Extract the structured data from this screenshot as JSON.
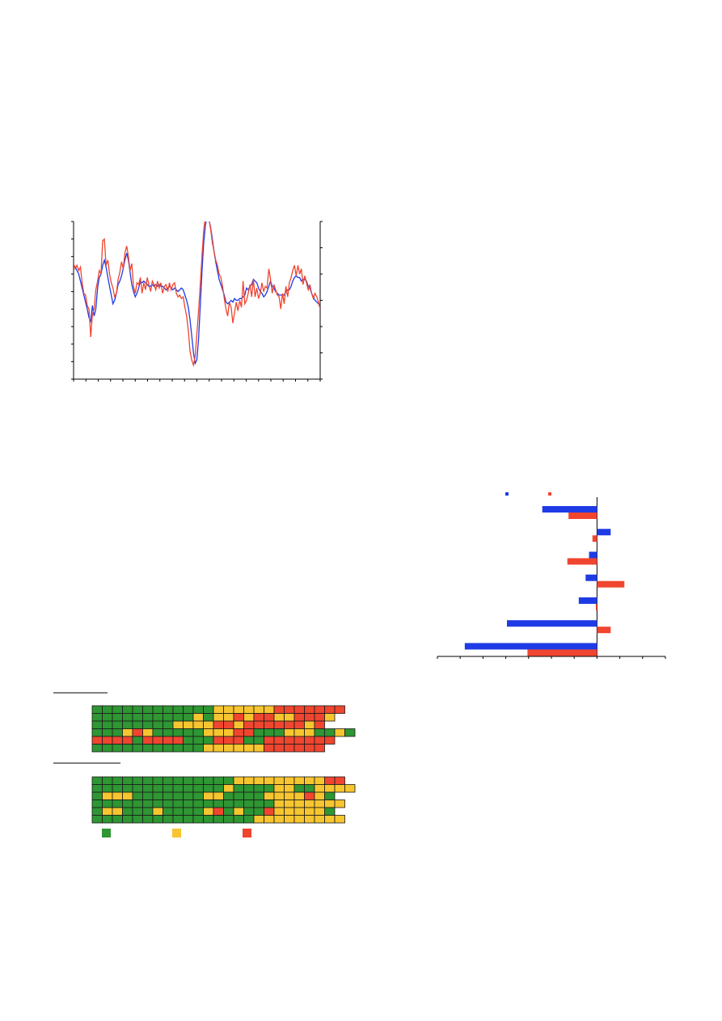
{
  "colors": {
    "blue": "#1f3be6",
    "red": "#f0452f",
    "green": "#2e9632",
    "yellow": "#f7c52f",
    "axis": "#000000"
  },
  "chart_data": [
    {
      "type": "line",
      "grid": false,
      "left_axis": {
        "ylim": [
          0,
          9
        ],
        "ticks": [
          0,
          1,
          2,
          3,
          4,
          5,
          6,
          7,
          8,
          9
        ]
      },
      "right_axis": {
        "ylim": [
          0,
          6
        ],
        "ticks": [
          0,
          1,
          2,
          3,
          4,
          5,
          6
        ]
      },
      "x_ticks": 20,
      "series": [
        {
          "axis": "left",
          "color": "blue",
          "values": [
            6.5,
            6.4,
            6.2,
            6.0,
            5.6,
            5.2,
            4.8,
            4.4,
            4.0,
            3.5,
            3.3,
            4.2,
            3.6,
            4.0,
            5.2,
            5.8,
            6.0,
            6.5,
            6.8,
            6.4,
            5.8,
            5.3,
            4.8,
            4.3,
            4.5,
            4.9,
            5.4,
            5.6,
            5.9,
            6.3,
            6.8,
            7.2,
            6.8,
            6.1,
            5.4,
            5.0,
            4.7,
            4.9,
            5.2,
            5.6,
            5.5,
            5.6,
            5.5,
            5.4,
            5.3,
            5.3,
            5.4,
            5.3,
            5.4,
            5.3,
            5.4,
            5.3,
            5.3,
            5.2,
            5.1,
            5.2,
            5.3,
            5.2,
            5.1,
            5.2,
            5.1,
            5.0,
            5.1,
            5.2,
            5.1,
            4.8,
            4.5,
            4.1,
            3.4,
            2.5,
            1.5,
            0.9,
            1.1,
            2.3,
            4.2,
            6.2,
            7.8,
            8.8,
            9.3,
            9.1,
            8.7,
            8.0,
            7.3,
            6.7,
            6.2,
            5.7,
            5.4,
            5.1,
            4.8,
            4.4,
            4.3,
            4.4,
            4.5,
            4.4,
            4.6,
            4.5,
            4.5,
            4.6,
            4.6,
            4.7,
            4.8,
            5.2,
            5.1,
            5.3,
            5.4,
            5.7,
            5.6,
            5.5,
            5.2,
            5.0,
            4.9,
            4.7,
            4.8,
            5.0,
            5.3,
            5.6,
            5.3,
            5.2,
            5.0,
            4.9,
            4.8,
            4.8,
            4.8,
            4.8,
            5.0,
            5.1,
            5.1,
            5.3,
            5.6,
            5.8,
            5.9,
            5.8,
            5.8,
            5.6,
            5.7,
            5.7,
            5.6,
            5.3,
            5.2,
            4.9,
            4.7,
            4.5,
            4.4,
            4.3,
            4.2
          ]
        },
        {
          "axis": "left",
          "color": "red",
          "values": [
            6.6,
            6.3,
            6.5,
            6.2,
            6.4,
            5.5,
            4.9,
            4.8,
            4.2,
            4.0,
            2.4,
            3.7,
            4.0,
            5.1,
            5.6,
            6.2,
            6.0,
            7.9,
            8.0,
            6.5,
            6.8,
            6.0,
            5.5,
            5.2,
            4.7,
            4.9,
            5.7,
            6.1,
            6.7,
            6.3,
            7.2,
            7.6,
            7.0,
            6.2,
            6.6,
            5.3,
            4.9,
            5.5,
            5.4,
            5.8,
            4.9,
            5.5,
            5.1,
            5.8,
            5.4,
            5.0,
            5.6,
            5.4,
            5.1,
            5.6,
            5.2,
            5.5,
            4.9,
            5.3,
            5.4,
            5.0,
            5.5,
            5.1,
            5.4,
            5.5,
            4.9,
            4.7,
            4.8,
            4.6,
            4.7,
            4.1,
            3.6,
            2.8,
            1.6,
            1.1,
            0.8,
            1.3,
            2.6,
            3.9,
            5.4,
            7.1,
            8.5,
            9.4,
            9.7,
            9.2,
            8.6,
            7.8,
            7.3,
            6.8,
            6.5,
            6.0,
            5.8,
            5.3,
            4.6,
            4.0,
            3.6,
            4.4,
            4.1,
            3.2,
            3.8,
            4.4,
            3.9,
            4.5,
            4.1,
            5.6,
            4.3,
            4.5,
            4.9,
            5.4,
            4.7,
            5.7,
            4.7,
            5.2,
            4.6,
            4.9,
            5.5,
            5.0,
            5.3,
            5.2,
            6.3,
            5.7,
            4.9,
            5.4,
            5.1,
            4.8,
            4.7,
            4.0,
            4.9,
            4.3,
            5.3,
            4.7,
            5.5,
            5.8,
            6.2,
            6.5,
            5.9,
            6.5,
            6.0,
            6.3,
            5.4,
            5.9,
            5.5,
            5.1,
            5.4,
            4.9,
            4.6,
            4.9,
            4.7,
            4.4,
            4.0
          ]
        }
      ]
    },
    {
      "type": "bar",
      "orientation": "horizontal",
      "grid": false,
      "xlim": [
        -7,
        3
      ],
      "x_ticks": [
        -7,
        -6,
        -5,
        -4,
        -3,
        -2,
        -1,
        0,
        1,
        2,
        3
      ],
      "legend": "top",
      "series": [
        {
          "color": "blue",
          "values": [
            -2.4,
            0.6,
            -0.35,
            -0.5,
            -0.8,
            -3.95,
            -5.8
          ]
        },
        {
          "color": "red",
          "values": [
            -1.25,
            -0.2,
            -1.3,
            1.2,
            -0.05,
            0.6,
            -3.05
          ]
        }
      ]
    },
    {
      "type": "heatmap",
      "legend": "bottom",
      "blocks": [
        {
          "rows": [
            "ggggggggggggyyyyyyrrrrrrr",
            "ggggggggggygyyryrryyrrry",
            "ggggggggyyyyrryrrrrrryr",
            "gggyrygggggyyyrrgggyyyggyg",
            "rrrrgrrrrgggrrrggrrrrrrr",
            "gggggggggggyyyyyyrrrrrr"
          ]
        },
        {
          "rows": [
            "ggggggggggggggyyyyyyyyyrr",
            "gggggggggggggyggggyyggyyyy",
            "gyyygggggggyyggggyyyyryg",
            "ggggggggggggggggggyyyyyyy",
            "gyygggyggggyrgyggryyyyyg",
            "ggggggggggggggggyyyyyyyyy"
          ]
        }
      ]
    }
  ]
}
